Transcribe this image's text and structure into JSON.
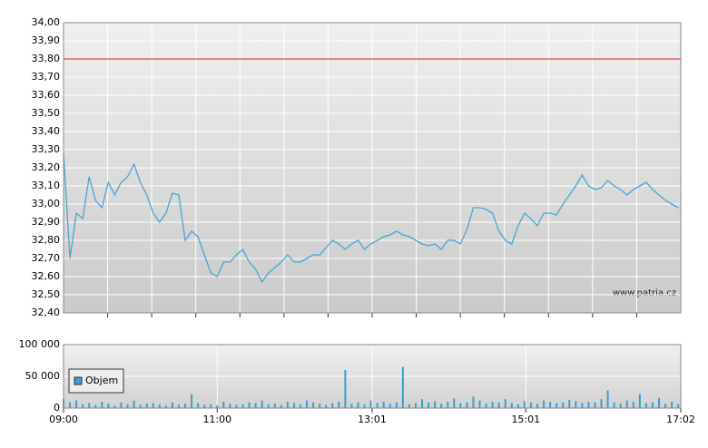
{
  "chart_data": {
    "type": "line",
    "watermark": "www.patria.cz",
    "x": [
      "09:00",
      "09:05",
      "09:10",
      "09:15",
      "09:20",
      "09:25",
      "09:30",
      "09:35",
      "09:40",
      "09:45",
      "09:50",
      "09:55",
      "10:00",
      "10:05",
      "10:10",
      "10:15",
      "10:20",
      "10:25",
      "10:30",
      "10:35",
      "10:40",
      "10:45",
      "10:50",
      "10:55",
      "11:00",
      "11:05",
      "11:10",
      "11:15",
      "11:20",
      "11:25",
      "11:30",
      "11:35",
      "11:40",
      "11:45",
      "11:50",
      "11:55",
      "12:00",
      "12:05",
      "12:10",
      "12:15",
      "12:20",
      "12:25",
      "12:30",
      "12:35",
      "12:40",
      "12:45",
      "12:50",
      "12:55",
      "13:00",
      "13:05",
      "13:10",
      "13:15",
      "13:20",
      "13:25",
      "13:30",
      "13:35",
      "13:40",
      "13:45",
      "13:50",
      "13:55",
      "14:00",
      "14:05",
      "14:10",
      "14:15",
      "14:20",
      "14:25",
      "14:30",
      "14:35",
      "14:40",
      "14:45",
      "14:50",
      "14:55",
      "15:00",
      "15:05",
      "15:10",
      "15:15",
      "15:20",
      "15:25",
      "15:30",
      "15:35",
      "15:40",
      "15:45",
      "15:50",
      "15:55",
      "16:00",
      "16:05",
      "16:10",
      "16:15",
      "16:20",
      "16:25",
      "16:30",
      "16:35",
      "16:40",
      "16:45",
      "16:50",
      "16:55",
      "17:00"
    ],
    "xlim": [
      "09:00",
      "17:02"
    ],
    "xticks": [
      "09:00",
      "11:00",
      "13:01",
      "15:01",
      "17:02"
    ],
    "ylim": [
      32.4,
      34.0
    ],
    "yticks": [
      {
        "value": 32.4,
        "label": "32,40"
      },
      {
        "value": 32.5,
        "label": "32,50"
      },
      {
        "value": 32.6,
        "label": "32,60"
      },
      {
        "value": 32.7,
        "label": "32,70"
      },
      {
        "value": 32.8,
        "label": "32,80"
      },
      {
        "value": 32.9,
        "label": "32,90"
      },
      {
        "value": 33.0,
        "label": "33,00"
      },
      {
        "value": 33.1,
        "label": "33,10"
      },
      {
        "value": 33.2,
        "label": "33,20"
      },
      {
        "value": 33.3,
        "label": "33,30"
      },
      {
        "value": 33.4,
        "label": "33,40"
      },
      {
        "value": 33.5,
        "label": "33,50"
      },
      {
        "value": 33.6,
        "label": "33,60"
      },
      {
        "value": 33.7,
        "label": "33,70"
      },
      {
        "value": 33.8,
        "label": "33,80"
      },
      {
        "value": 33.9,
        "label": "33,90"
      },
      {
        "value": 34.0,
        "label": "34,00"
      }
    ],
    "y2lim": [
      0,
      100000
    ],
    "y2ticks": [
      0,
      {
        "value": 50000,
        "label": "50 000"
      },
      {
        "value": 100000,
        "label": "100 000"
      }
    ],
    "reference_line": {
      "value": 33.8,
      "color": "#cc2222"
    },
    "grid": true,
    "legend": "lower-left",
    "series": [
      {
        "name": "Cena",
        "color": "#4aa6d2",
        "values": [
          33.28,
          32.7,
          32.95,
          32.92,
          33.15,
          33.02,
          32.98,
          33.12,
          33.05,
          33.12,
          33.15,
          33.22,
          33.12,
          33.05,
          32.95,
          32.9,
          32.95,
          33.06,
          33.05,
          32.8,
          32.85,
          32.82,
          32.72,
          32.62,
          32.6,
          32.68,
          32.68,
          32.72,
          32.75,
          32.68,
          32.64,
          32.57,
          32.62,
          32.65,
          32.68,
          32.72,
          32.68,
          32.68,
          32.7,
          32.72,
          32.72,
          32.76,
          32.8,
          32.78,
          32.75,
          32.78,
          32.8,
          32.75,
          32.78,
          32.8,
          32.82,
          32.83,
          32.85,
          32.83,
          32.82,
          32.8,
          32.78,
          32.77,
          32.78,
          32.75,
          32.8,
          32.8,
          32.78,
          32.86,
          32.98,
          32.98,
          32.97,
          32.95,
          32.85,
          32.8,
          32.78,
          32.88,
          32.95,
          32.92,
          32.88,
          32.95,
          32.95,
          32.94,
          33.0,
          33.05,
          33.1,
          33.16,
          33.1,
          33.08,
          33.09,
          33.13,
          33.1,
          33.08,
          33.05,
          33.08,
          33.1,
          33.12,
          33.08,
          33.05,
          33.02,
          33.0,
          32.98
        ]
      },
      {
        "name": "Objem",
        "type": "bar",
        "axis": "y2",
        "color": "#3b9fd0",
        "values": [
          14000,
          9000,
          12000,
          6000,
          8000,
          5000,
          10000,
          7000,
          4000,
          9000,
          6000,
          12000,
          5000,
          7000,
          8000,
          6000,
          4000,
          9000,
          5000,
          7000,
          22000,
          8000,
          5000,
          6000,
          4000,
          10000,
          7000,
          5000,
          6000,
          9000,
          8000,
          12000,
          6000,
          7000,
          5000,
          10000,
          8000,
          6000,
          12000,
          9000,
          7000,
          5000,
          8000,
          10000,
          60000,
          7000,
          9000,
          6000,
          12000,
          8000,
          10000,
          7000,
          9000,
          65000,
          6000,
          8000,
          14000,
          9000,
          11000,
          7000,
          10000,
          15000,
          8000,
          9000,
          18000,
          12000,
          7000,
          10000,
          9000,
          14000,
          8000,
          6000,
          11000,
          9000,
          7000,
          12000,
          10000,
          8000,
          9000,
          13000,
          11000,
          8000,
          10000,
          9000,
          14000,
          28000,
          9000,
          7000,
          12000,
          10000,
          22000,
          8000,
          9000,
          16000,
          7000,
          10000,
          6000
        ]
      }
    ]
  }
}
